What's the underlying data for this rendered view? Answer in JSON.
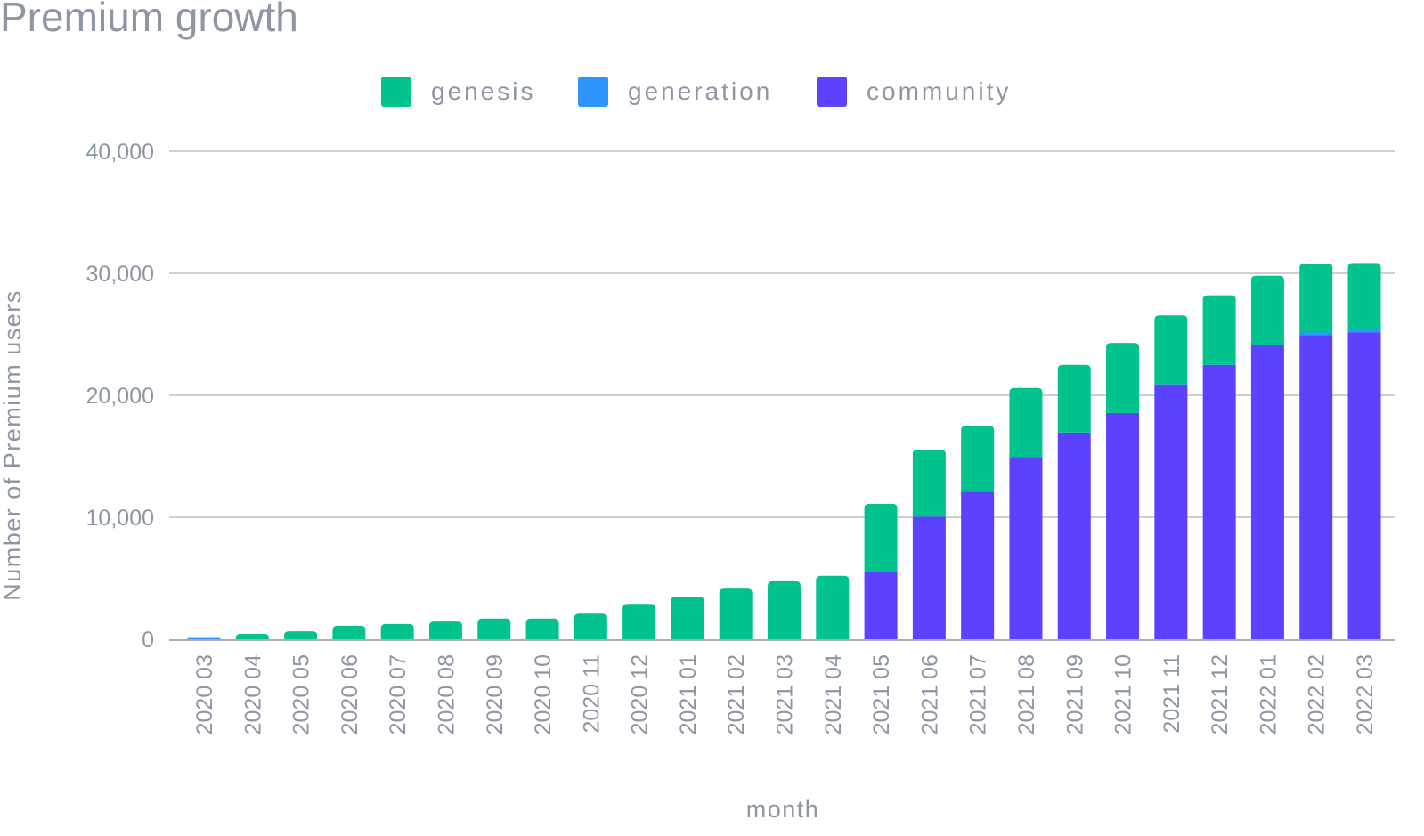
{
  "chart_data": {
    "type": "bar",
    "stacked": true,
    "title": "Premium growth",
    "xlabel": "month",
    "ylabel": "Number of Premium users",
    "ylim": [
      0,
      40000
    ],
    "yticks": [
      0,
      10000,
      20000,
      30000,
      40000
    ],
    "ytick_labels": [
      "0",
      "10,000",
      "20,000",
      "30,000",
      "40,000"
    ],
    "grid": true,
    "legend_position": "top-center",
    "categories": [
      "2020 03",
      "2020 04",
      "2020 05",
      "2020 06",
      "2020 07",
      "2020 08",
      "2020 09",
      "2020 10",
      "2020 11",
      "2020 12",
      "2021 01",
      "2021 02",
      "2021 03",
      "2021 04",
      "2021 05",
      "2021 06",
      "2021 07",
      "2021 08",
      "2021 09",
      "2021 10",
      "2021 11",
      "2021 12",
      "2022 01",
      "2022 02",
      "2022 03"
    ],
    "series": [
      {
        "name": "community",
        "color": "#5b42ff",
        "values": [
          0,
          0,
          0,
          0,
          0,
          0,
          0,
          0,
          0,
          0,
          0,
          0,
          0,
          0,
          5550,
          10050,
          12100,
          14950,
          16950,
          18550,
          20900,
          22500,
          24100,
          24950,
          25150
        ]
      },
      {
        "name": "generation",
        "color": "#2e95ff",
        "values": [
          100,
          0,
          0,
          0,
          0,
          0,
          0,
          0,
          0,
          0,
          0,
          0,
          0,
          0,
          0,
          0,
          0,
          0,
          0,
          0,
          0,
          0,
          0,
          200,
          250
        ]
      },
      {
        "name": "genesis",
        "color": "#02c38e",
        "values": [
          0,
          450,
          650,
          1100,
          1250,
          1450,
          1700,
          1700,
          2100,
          2900,
          3500,
          4150,
          4750,
          5200,
          5550,
          5500,
          5400,
          5650,
          5550,
          5750,
          5650,
          5700,
          5700,
          5650,
          5450
        ]
      }
    ],
    "legend": [
      {
        "name": "genesis",
        "color": "#02c38e"
      },
      {
        "name": "generation",
        "color": "#2e95ff"
      },
      {
        "name": "community",
        "color": "#5b42ff"
      }
    ]
  }
}
